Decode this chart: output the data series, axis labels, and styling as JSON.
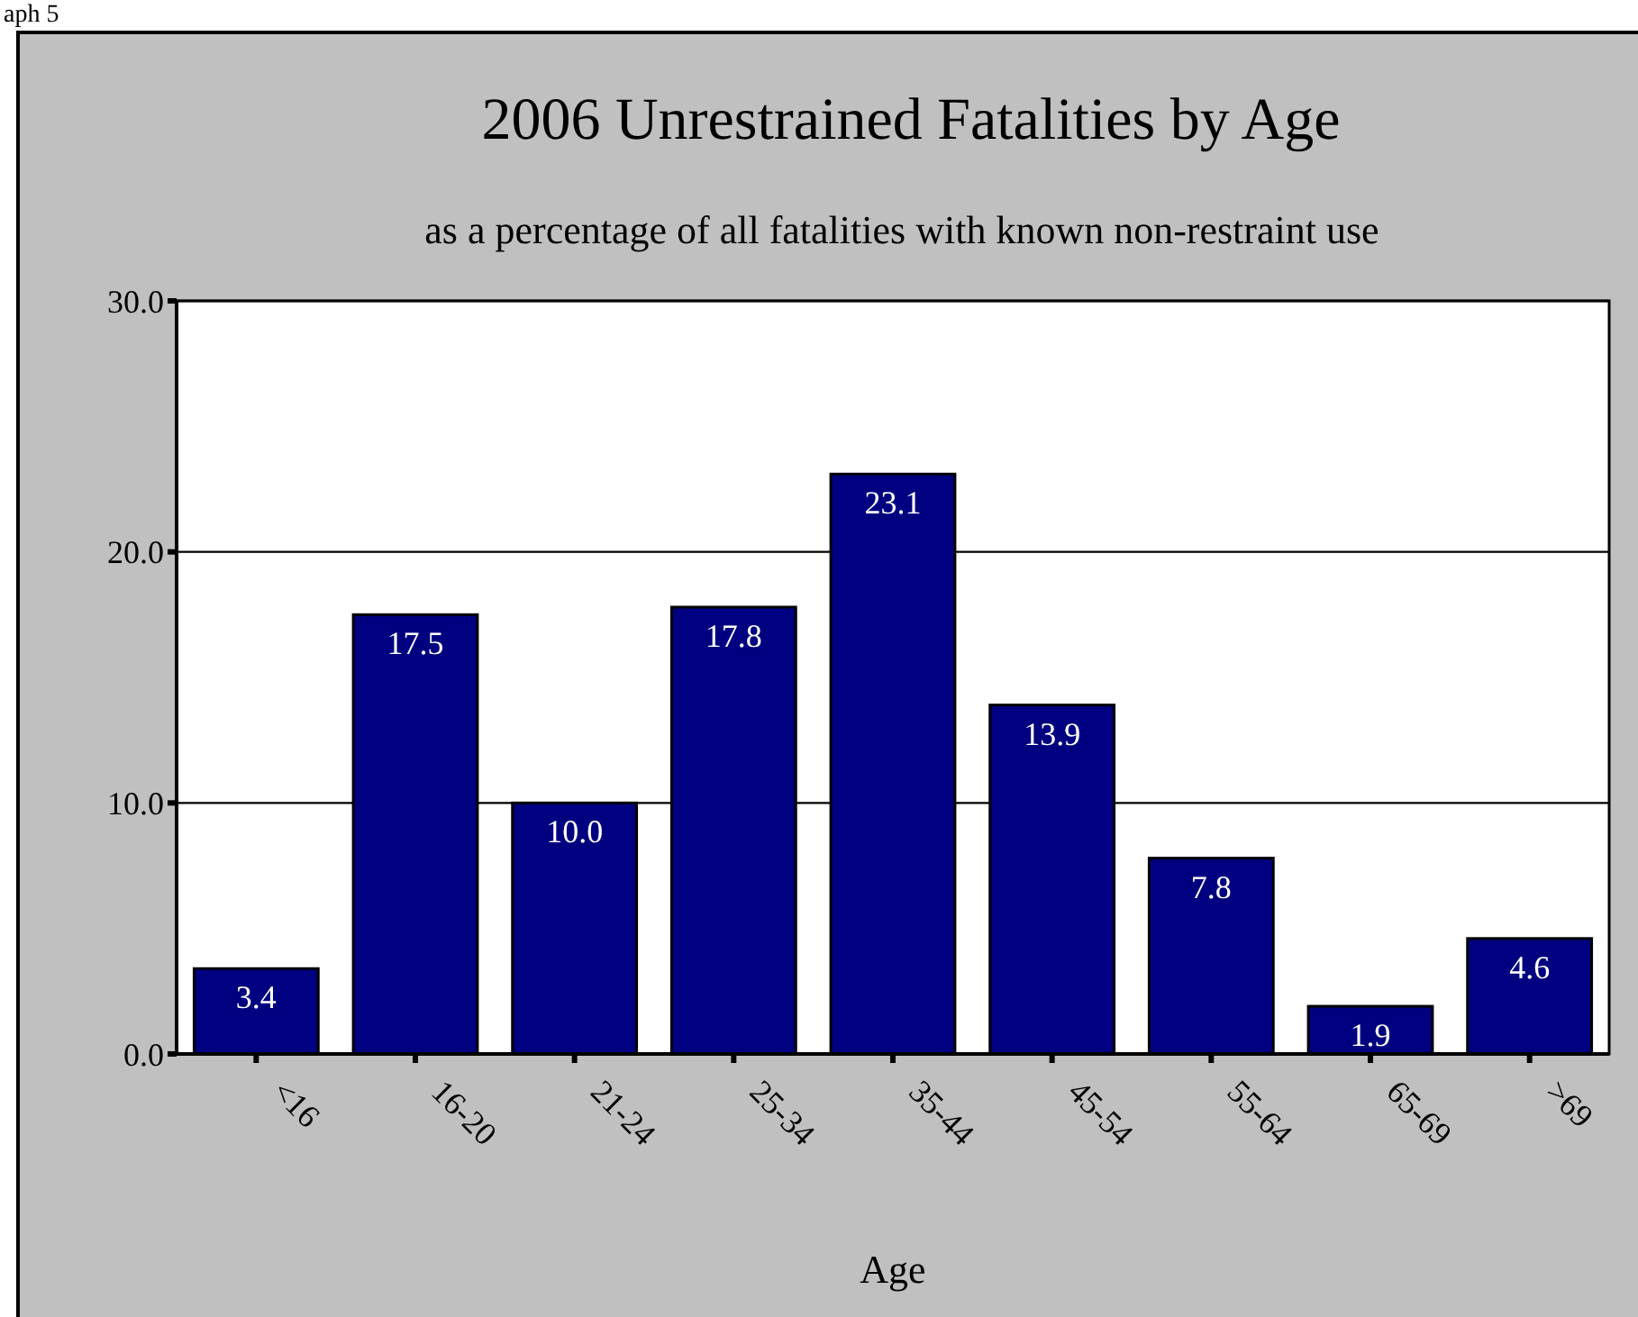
{
  "chart_data": {
    "type": "bar",
    "title": "2006 Unrestrained Fatalities by Age",
    "subtitle": "as a percentage of all fatalities with known non-restraint use",
    "xlabel": "Age",
    "annotations": [
      "aph 5"
    ],
    "categories": [
      "<16",
      "16-20",
      "21-24",
      "25-34",
      "35-44",
      "45-54",
      "55-64",
      "65-69",
      ">69"
    ],
    "values": [
      3.4,
      17.5,
      10.0,
      17.8,
      23.1,
      13.9,
      7.8,
      1.9,
      4.6
    ],
    "color": "#000080",
    "ylim": [
      0,
      30
    ],
    "yticks": [
      {
        "value": 0,
        "label": "0.0"
      },
      {
        "value": 10,
        "label": "10.0"
      },
      {
        "value": 20,
        "label": "20.0"
      },
      {
        "value": 30,
        "label": "30.0"
      }
    ],
    "grid": "y",
    "value_labels": [
      "3.4",
      "17.5",
      "10.0",
      "17.8",
      "23.1",
      "13.9",
      "7.8",
      "1.9",
      "4.6"
    ]
  }
}
